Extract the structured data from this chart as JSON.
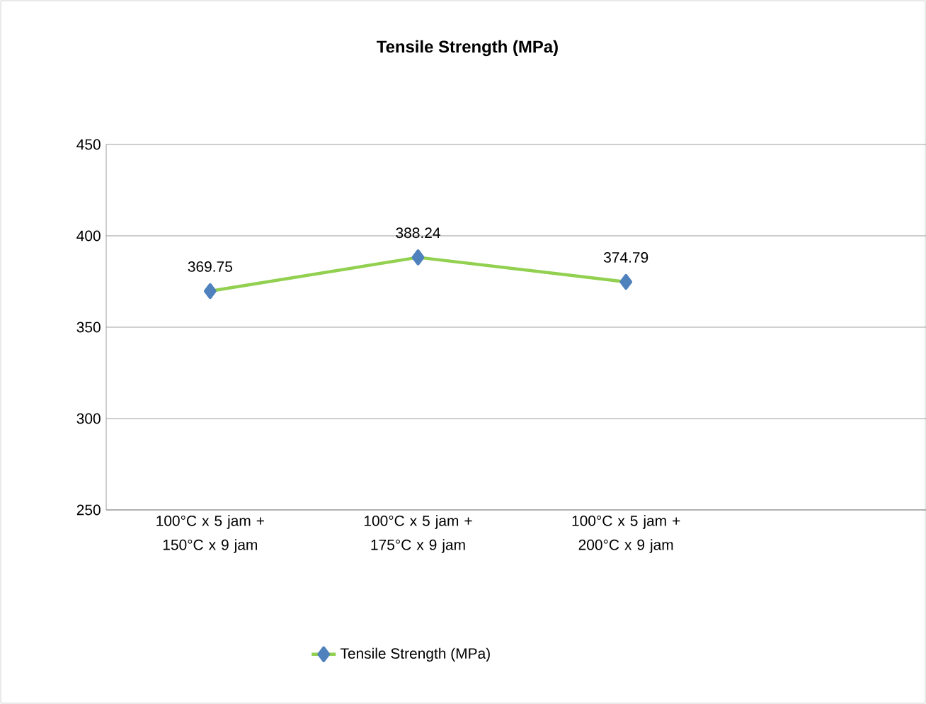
{
  "chart_data": {
    "type": "line",
    "title": "Tensile Strength (MPa)",
    "categories": [
      "100°C x 5 jam + 150°C x 9 jam",
      "100°C x 5 jam + 175°C x 9 jam",
      "100°C x 5 jam + 200°C x 9 jam",
      null
    ],
    "series": [
      {
        "name": "Tensile Strength (MPa)",
        "color": "#92d050",
        "values": [
          369.75,
          388.24,
          374.79,
          null
        ]
      }
    ],
    "ylim": [
      250,
      450
    ],
    "yticks": [
      250,
      300,
      350,
      400,
      450
    ],
    "grid": "y",
    "legend": "bottom",
    "marker": "diamond",
    "line_style": "solid",
    "data_labels": true
  }
}
